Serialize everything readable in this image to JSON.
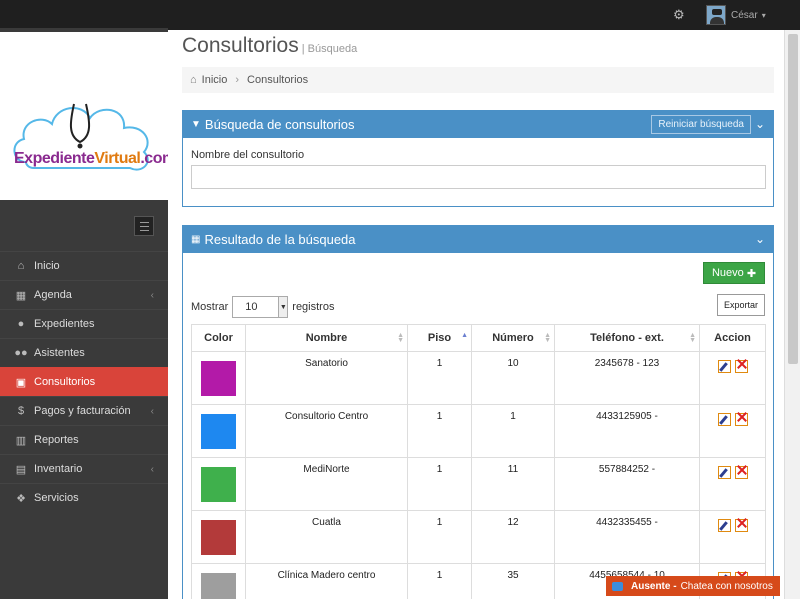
{
  "topbar": {
    "user_name": "César"
  },
  "sidebar": {
    "brand_part1": "Expediente",
    "brand_part2": "Virtual",
    "brand_part3": ".com",
    "items": [
      {
        "label": "Inicio",
        "icon": "home-icon"
      },
      {
        "label": "Agenda",
        "icon": "calendar-icon"
      },
      {
        "label": "Expedientes",
        "icon": "user-icon"
      },
      {
        "label": "Asistentes",
        "icon": "users-icon"
      },
      {
        "label": "Consultorios",
        "icon": "hospital-icon"
      },
      {
        "label": "Pagos y facturación",
        "icon": "dollar-icon"
      },
      {
        "label": "Reportes",
        "icon": "chart-icon"
      },
      {
        "label": "Inventario",
        "icon": "box-icon"
      },
      {
        "label": "Servicios",
        "icon": "cubes-icon"
      }
    ]
  },
  "page": {
    "title": "Consultorios",
    "subtitle": "| Búsqueda"
  },
  "breadcrumb": {
    "home": "Inicio",
    "current": "Consultorios"
  },
  "search_panel": {
    "title": "Búsqueda de consultorios",
    "reset_label": "Reiniciar búsqueda",
    "field_label": "Nombre del consultorio",
    "field_value": ""
  },
  "results_panel": {
    "title": "Resultado de la búsqueda",
    "new_label": "Nuevo",
    "show_label": "Mostrar",
    "page_size": "10",
    "records_label": "registros",
    "export_label": "Exportar",
    "columns": [
      "Color",
      "Nombre",
      "Piso",
      "Número",
      "Teléfono - ext.",
      "Accion"
    ],
    "rows": [
      {
        "color": "#b31aa8",
        "nombre": "Sanatorio",
        "piso": "1",
        "numero": "10",
        "telefono": "2345678 - 123"
      },
      {
        "color": "#1e88f0",
        "nombre": "Consultorio Centro",
        "piso": "1",
        "numero": "1",
        "telefono": "4433125905 -"
      },
      {
        "color": "#3fb04c",
        "nombre": "MediNorte",
        "piso": "1",
        "numero": "11",
        "telefono": "557884252 -"
      },
      {
        "color": "#b33a3a",
        "nombre": "Cuatla",
        "piso": "1",
        "numero": "12",
        "telefono": "4432335455 -"
      },
      {
        "color": "#9e9e9e",
        "nombre": "Clínica Madero centro",
        "piso": "1",
        "numero": "35",
        "telefono": "4455658544 - 10"
      }
    ]
  },
  "chat": {
    "status": "Ausente -",
    "text": "Chatea con nosotros"
  },
  "colors": {
    "primary_panel": "#4a90c6",
    "active_nav": "#d9443a",
    "new_button": "#3ca546",
    "chat_bar": "#d64a1a"
  }
}
